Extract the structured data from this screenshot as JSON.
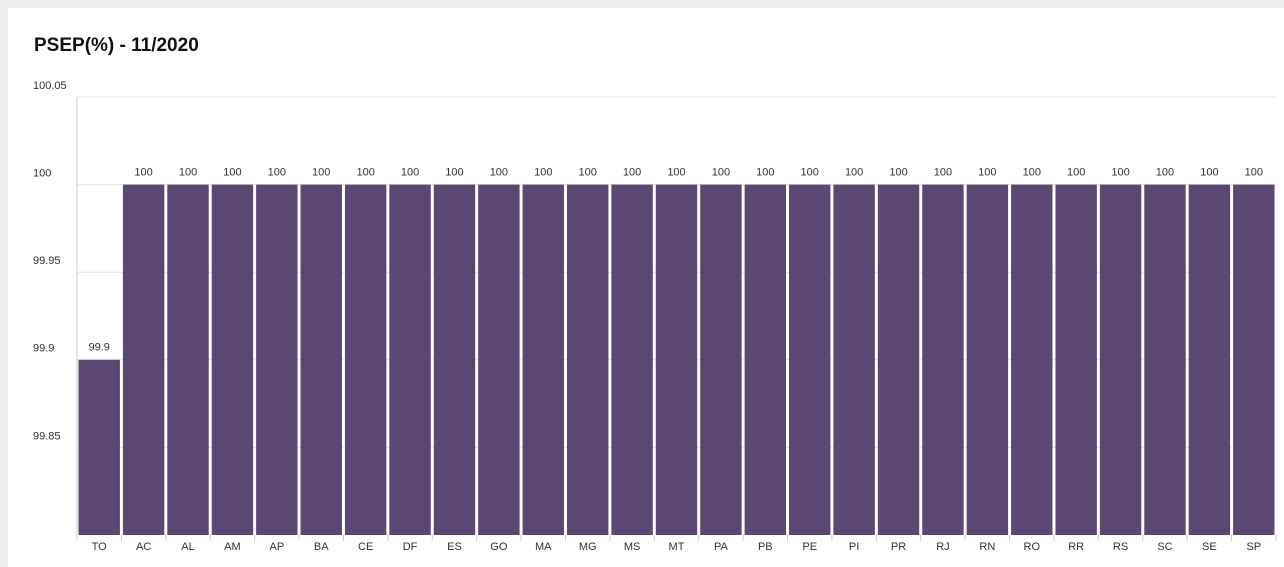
{
  "chart_data": {
    "type": "bar",
    "title": "PSEP(%) - 11/2020",
    "categories": [
      "TO",
      "AC",
      "AL",
      "AM",
      "AP",
      "BA",
      "CE",
      "DF",
      "ES",
      "GO",
      "MA",
      "MG",
      "MS",
      "MT",
      "PA",
      "PB",
      "PE",
      "PI",
      "PR",
      "RJ",
      "RN",
      "RO",
      "RR",
      "RS",
      "SC",
      "SE",
      "SP"
    ],
    "values": [
      99.9,
      100,
      100,
      100,
      100,
      100,
      100,
      100,
      100,
      100,
      100,
      100,
      100,
      100,
      100,
      100,
      100,
      100,
      100,
      100,
      100,
      100,
      100,
      100,
      100,
      100,
      100
    ],
    "color": "#5c4673",
    "ylim": [
      99.8,
      100.05
    ],
    "yticks": [
      99.85,
      99.9,
      99.95,
      100,
      100.05
    ],
    "grid": true
  }
}
